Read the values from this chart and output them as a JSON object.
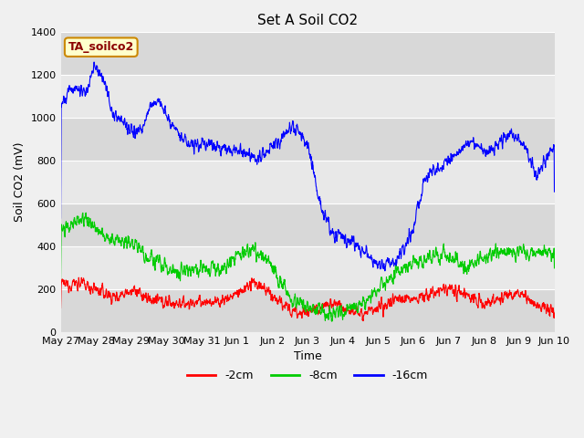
{
  "title": "Set A Soil CO2",
  "ylabel": "Soil CO2 (mV)",
  "xlabel": "Time",
  "legend_label": "TA_soilco2",
  "series_labels": [
    "-2cm",
    "-8cm",
    "-16cm"
  ],
  "series_colors": [
    "#ff0000",
    "#00cc00",
    "#0000ff"
  ],
  "ylim": [
    0,
    1400
  ],
  "fig_bg": "#f0f0f0",
  "plot_bg": "#e8e8e8",
  "band_colors": [
    "#d8d8d8",
    "#e8e8e8"
  ],
  "grid_color": "#ffffff",
  "title_fontsize": 11,
  "axis_label_fontsize": 9,
  "tick_label_fontsize": 8,
  "legend_fontsize": 9,
  "date_labels": [
    "May 27",
    "May 28",
    "May 29",
    "May 30",
    "May 31",
    "Jun 1",
    "Jun 2",
    "Jun 3",
    "Jun 4",
    "Jun 5",
    "Jun 6",
    "Jun 7",
    "Jun 8",
    "Jun 9",
    "Jun 10"
  ],
  "yticks": [
    0,
    200,
    400,
    600,
    800,
    1000,
    1200,
    1400
  ]
}
